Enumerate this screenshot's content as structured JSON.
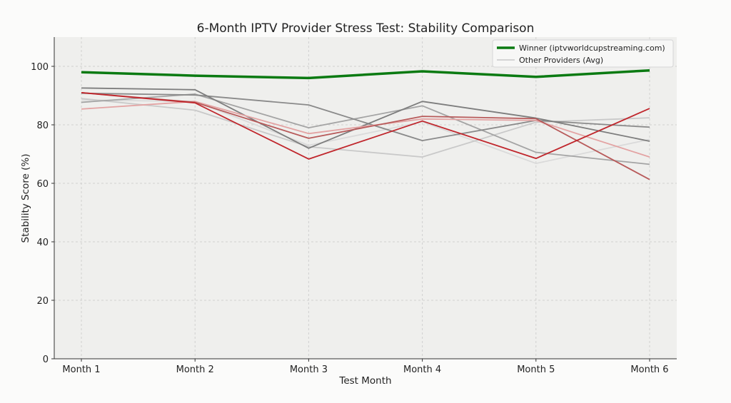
{
  "chart_data": {
    "type": "line",
    "title": "6-Month IPTV Provider Stress Test: Stability Comparison",
    "xlabel": "Test Month",
    "ylabel": "Stability Score (%)",
    "categories": [
      "Month 1",
      "Month 2",
      "Month 3",
      "Month 4",
      "Month 5",
      "Month 6"
    ],
    "ylim": [
      0,
      110
    ],
    "yticks": [
      0,
      20,
      40,
      60,
      80,
      100
    ],
    "grid": true,
    "legend_position": "top-right",
    "legend": [
      {
        "label": "Winner (iptvworldcupstreaming.com)",
        "color": "#0b7a12"
      },
      {
        "label": "Other Providers (Avg)",
        "color": "#c8c8c8"
      }
    ],
    "series": [
      {
        "name": "Winner (iptvworldcupstreaming.com)",
        "color": "#0b7a12",
        "values": [
          98.0,
          96.8,
          96.0,
          98.3,
          96.4,
          98.6
        ]
      },
      {
        "color": "#dadada",
        "values": [
          88.5,
          88.0,
          73.0,
          81.0,
          66.8,
          75.0
        ]
      },
      {
        "color": "#c9c9c9",
        "values": [
          89.0,
          85.0,
          72.5,
          69.0,
          80.9,
          82.4
        ]
      },
      {
        "color": "#a4a4a4",
        "values": [
          87.7,
          90.5,
          79.0,
          86.5,
          70.6,
          66.5
        ]
      },
      {
        "color": "#8a8a8a",
        "values": [
          90.8,
          90.2,
          86.8,
          74.6,
          81.5,
          79.2
        ]
      },
      {
        "color": "#7d7d7d",
        "values": [
          92.6,
          92.0,
          72.0,
          88.0,
          82.3,
          74.4
        ]
      },
      {
        "color": "#e3a3a3",
        "values": [
          85.4,
          88.0,
          77.0,
          82.0,
          81.5,
          69.0
        ]
      },
      {
        "color": "#b85a5a",
        "values": [
          91.0,
          87.7,
          75.4,
          82.9,
          82.1,
          61.3
        ]
      },
      {
        "color": "#c0262c",
        "values": [
          91.0,
          87.5,
          68.3,
          81.3,
          68.5,
          85.6
        ]
      }
    ]
  }
}
